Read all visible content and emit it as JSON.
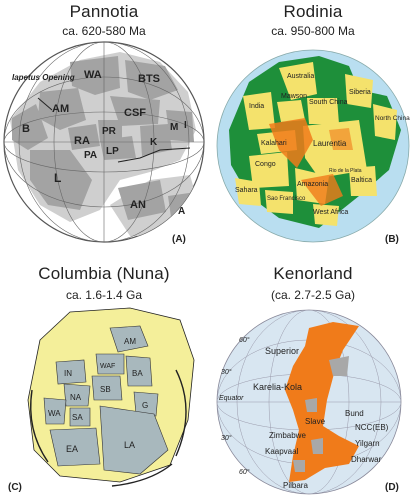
{
  "panels": [
    {
      "id": "A",
      "title": "Pannotia",
      "age": "ca. 620-580 Ma",
      "letter": "(A)",
      "note": "Iapetus Opening",
      "labels": [
        "WA",
        "BTS",
        "AM",
        "CSF",
        "B",
        "RA",
        "PR",
        "PA",
        "LP",
        "M",
        "I",
        "K",
        "L",
        "AN",
        "A"
      ]
    },
    {
      "id": "B",
      "title": "Rodinia",
      "age": "ca. 950-800 Ma",
      "letter": "(B)",
      "labels": [
        "Australia",
        "India",
        "Mawson",
        "South China",
        "Siberia",
        "North China",
        "Kalahari",
        "Laurentia",
        "Congo",
        "Amazonia",
        "Sahara",
        "Sao Francisco",
        "Baltica",
        "Rio de la Plata",
        "West Africa"
      ]
    },
    {
      "id": "C",
      "title": "Columbia (Nuna)",
      "age": "ca. 1.6-1.4 Ga",
      "letter": "(C)",
      "labels": [
        "AM",
        "WAF",
        "IN",
        "SB",
        "BA",
        "NA",
        "WA",
        "SA",
        "G",
        "EA",
        "LA"
      ]
    },
    {
      "id": "D",
      "title": "Kenorland",
      "age": "(ca. 2.7-2.5 Ga)",
      "letter": "(D)",
      "latitudes": [
        "60°",
        "30°",
        "Equator",
        "30°",
        "60°"
      ],
      "labels": [
        "Superior",
        "Karelia-Kola",
        "Bund",
        "Slave",
        "NCC(EB)",
        "Zimbabwe",
        "Yilgarn",
        "Kaapvaal",
        "Dharwar",
        "Pilbara"
      ]
    }
  ],
  "colors": {
    "landA": "#a3a3a3",
    "shelfA": "#cfcfcf",
    "ocean": "#b9def0",
    "green": "#1e8f3a",
    "yellow": "#f4e26c",
    "orange": "#f07b1a",
    "craton": "#a8b8bd",
    "halo": "#f4ef9a",
    "globe": "#d8e6f1"
  }
}
